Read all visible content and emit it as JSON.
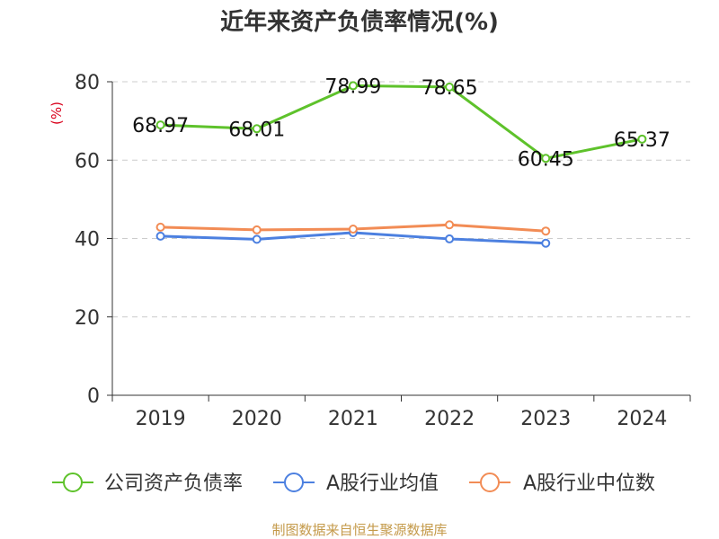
{
  "chart_data": {
    "type": "line",
    "title": "近年来资产负债率情况(%)",
    "ylabel": "(%)",
    "xlabel": "",
    "categories": [
      "2019",
      "2020",
      "2021",
      "2022",
      "2023",
      "2024"
    ],
    "ylim": [
      0,
      80
    ],
    "yticks": [
      0,
      20,
      40,
      60,
      80
    ],
    "grid": true,
    "legend_position": "bottom",
    "series": [
      {
        "name": "公司资产负债率",
        "values": [
          68.97,
          68.01,
          78.99,
          78.65,
          60.45,
          65.37
        ],
        "color": "#5ec22b",
        "labels": [
          "68.97",
          "68.01",
          "78.99",
          "78.65",
          "60.45",
          "65.37"
        ]
      },
      {
        "name": "A股行业均值",
        "values": [
          40.6,
          39.8,
          41.5,
          39.9,
          38.8,
          null
        ],
        "color": "#4c80e0"
      },
      {
        "name": "A股行业中位数",
        "values": [
          42.9,
          42.2,
          42.4,
          43.5,
          41.9,
          null
        ],
        "color": "#f28c55"
      }
    ]
  },
  "footer": {
    "source": "制图数据来自恒生聚源数据库"
  },
  "colors": {
    "ylabel": "#d9001b",
    "grid": "#cccccc",
    "axis": "#333333",
    "source": "#c49a4a"
  }
}
